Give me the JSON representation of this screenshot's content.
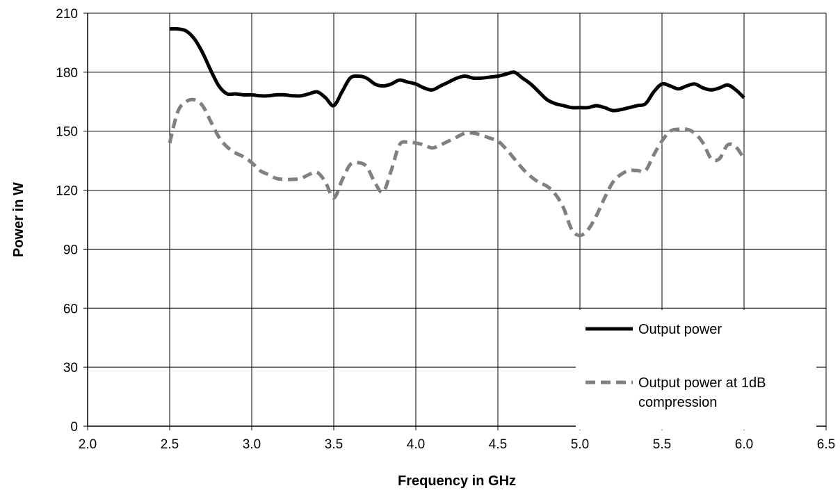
{
  "chart_data": {
    "type": "line",
    "xlabel": "Frequency in GHz",
    "ylabel": "Power in W",
    "xlim": [
      2.0,
      6.5
    ],
    "ylim": [
      0,
      210
    ],
    "xticks": [
      2.0,
      2.5,
      3.0,
      3.5,
      4.0,
      4.5,
      5.0,
      5.5,
      6.0,
      6.5
    ],
    "yticks": [
      0,
      30,
      60,
      90,
      120,
      150,
      180,
      210
    ],
    "xtick_labels": [
      "2.0",
      "2.5",
      "3.0",
      "3.5",
      "4.0",
      "4.5",
      "5.0",
      "5.5",
      "6.0",
      "6.5"
    ],
    "ytick_labels": [
      "0",
      "30",
      "60",
      "90",
      "120",
      "150",
      "180",
      "210"
    ],
    "grid": "vertical and horizontal",
    "legend_position": "bottom-right",
    "series": [
      {
        "name": "Output power",
        "color": "#000000",
        "dash": "solid",
        "x": [
          2.5,
          2.55,
          2.6,
          2.65,
          2.7,
          2.75,
          2.8,
          2.85,
          2.9,
          2.95,
          3.0,
          3.05,
          3.1,
          3.15,
          3.2,
          3.25,
          3.3,
          3.35,
          3.4,
          3.45,
          3.5,
          3.55,
          3.6,
          3.65,
          3.7,
          3.75,
          3.8,
          3.85,
          3.9,
          3.95,
          4.0,
          4.05,
          4.1,
          4.15,
          4.2,
          4.25,
          4.3,
          4.35,
          4.4,
          4.45,
          4.5,
          4.55,
          4.6,
          4.65,
          4.7,
          4.75,
          4.8,
          4.85,
          4.9,
          4.95,
          5.0,
          5.05,
          5.1,
          5.15,
          5.2,
          5.25,
          5.3,
          5.35,
          5.4,
          5.45,
          5.5,
          5.55,
          5.6,
          5.65,
          5.7,
          5.75,
          5.8,
          5.85,
          5.9,
          5.95,
          6.0
        ],
        "y": [
          202,
          202,
          201,
          197,
          190,
          181,
          173,
          169,
          169,
          168.5,
          168.5,
          168,
          168,
          168.5,
          168.5,
          168,
          168,
          169,
          170,
          167,
          163,
          170,
          177,
          178,
          177,
          174,
          173,
          174,
          176,
          175,
          174,
          172,
          171,
          173,
          175,
          177,
          178,
          177,
          177,
          177.5,
          178,
          179,
          180,
          177,
          174,
          170,
          166,
          164,
          163,
          162,
          162,
          162,
          163,
          162,
          160.5,
          161,
          162,
          163,
          164,
          170,
          174,
          173,
          171.5,
          173,
          174,
          172,
          171,
          172,
          173.5,
          171,
          167
        ]
      },
      {
        "name": "Output power at 1dB compression",
        "color": "#808080",
        "dash": "dashed",
        "x": [
          2.5,
          2.55,
          2.6,
          2.65,
          2.7,
          2.75,
          2.8,
          2.85,
          2.9,
          2.95,
          3.0,
          3.05,
          3.1,
          3.15,
          3.2,
          3.25,
          3.3,
          3.35,
          3.4,
          3.45,
          3.5,
          3.55,
          3.6,
          3.65,
          3.7,
          3.75,
          3.8,
          3.85,
          3.9,
          3.95,
          4.0,
          4.05,
          4.1,
          4.15,
          4.2,
          4.25,
          4.3,
          4.35,
          4.4,
          4.45,
          4.5,
          4.55,
          4.6,
          4.65,
          4.7,
          4.75,
          4.8,
          4.85,
          4.9,
          4.95,
          5.0,
          5.05,
          5.1,
          5.15,
          5.2,
          5.25,
          5.3,
          5.35,
          5.4,
          5.45,
          5.5,
          5.55,
          5.6,
          5.65,
          5.7,
          5.75,
          5.8,
          5.85,
          5.9,
          5.95,
          6.0
        ],
        "y": [
          144,
          160,
          165,
          166,
          163,
          155,
          147,
          142,
          139,
          137,
          134,
          130,
          128,
          126,
          125.5,
          125.5,
          126,
          128,
          129,
          124,
          116,
          125,
          133,
          134,
          132,
          124,
          119,
          130,
          143,
          144.5,
          144,
          143,
          141.5,
          143,
          145,
          147,
          149,
          149,
          148,
          146.5,
          145,
          141,
          136,
          131,
          127,
          124,
          122,
          118,
          111,
          100,
          97,
          100,
          107,
          116,
          124,
          128,
          130,
          130,
          130,
          138,
          145,
          150,
          151,
          151,
          149,
          144,
          136,
          136,
          143,
          142,
          136
        ]
      }
    ]
  }
}
